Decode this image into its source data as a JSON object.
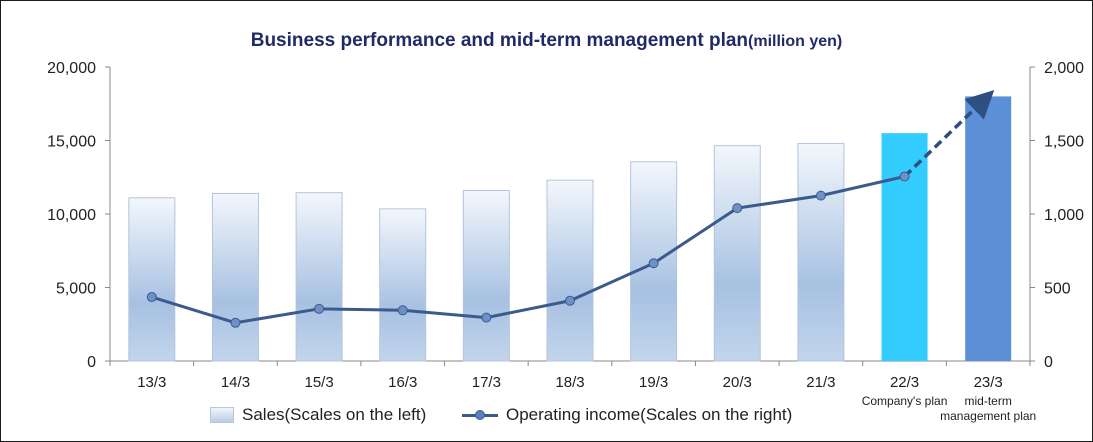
{
  "chart_data": {
    "type": "bar",
    "title": "Business performance and mid-term management plan",
    "title_unit": "(million yen)",
    "categories": [
      "13/3",
      "14/3",
      "15/3",
      "16/3",
      "17/3",
      "18/3",
      "19/3",
      "20/3",
      "21/3",
      "22/3",
      "23/3"
    ],
    "category_notes": [
      "",
      "",
      "",
      "",
      "",
      "",
      "",
      "",
      "",
      "Company's plan",
      "mid-term\nmanagement plan"
    ],
    "series": [
      {
        "name": "Sales(Scales on the left)",
        "kind": "bar",
        "axis": "left",
        "values": [
          11100,
          11400,
          11450,
          10350,
          11600,
          12300,
          13550,
          14650,
          14800,
          15500,
          18000
        ],
        "colors": [
          "gradient",
          "gradient",
          "gradient",
          "gradient",
          "gradient",
          "gradient",
          "gradient",
          "gradient",
          "gradient",
          "#33ccff",
          "#5b8fd6"
        ]
      },
      {
        "name": "Operating income(Scales on the right)",
        "kind": "line",
        "axis": "right",
        "values": [
          435,
          260,
          355,
          345,
          295,
          410,
          665,
          1040,
          1125,
          1255,
          1805
        ],
        "dashed_from_index": 9,
        "color": "#3a5b8c"
      }
    ],
    "y_left": {
      "lim": [
        0,
        20000
      ],
      "ticks": [
        "0",
        "5,000",
        "10,000",
        "15,000",
        "20,000"
      ]
    },
    "y_right": {
      "lim": [
        0,
        2000
      ],
      "ticks": [
        "0",
        "500",
        "1,000",
        "1,500",
        "2,000"
      ]
    },
    "grid": false,
    "legend": "bottom"
  }
}
